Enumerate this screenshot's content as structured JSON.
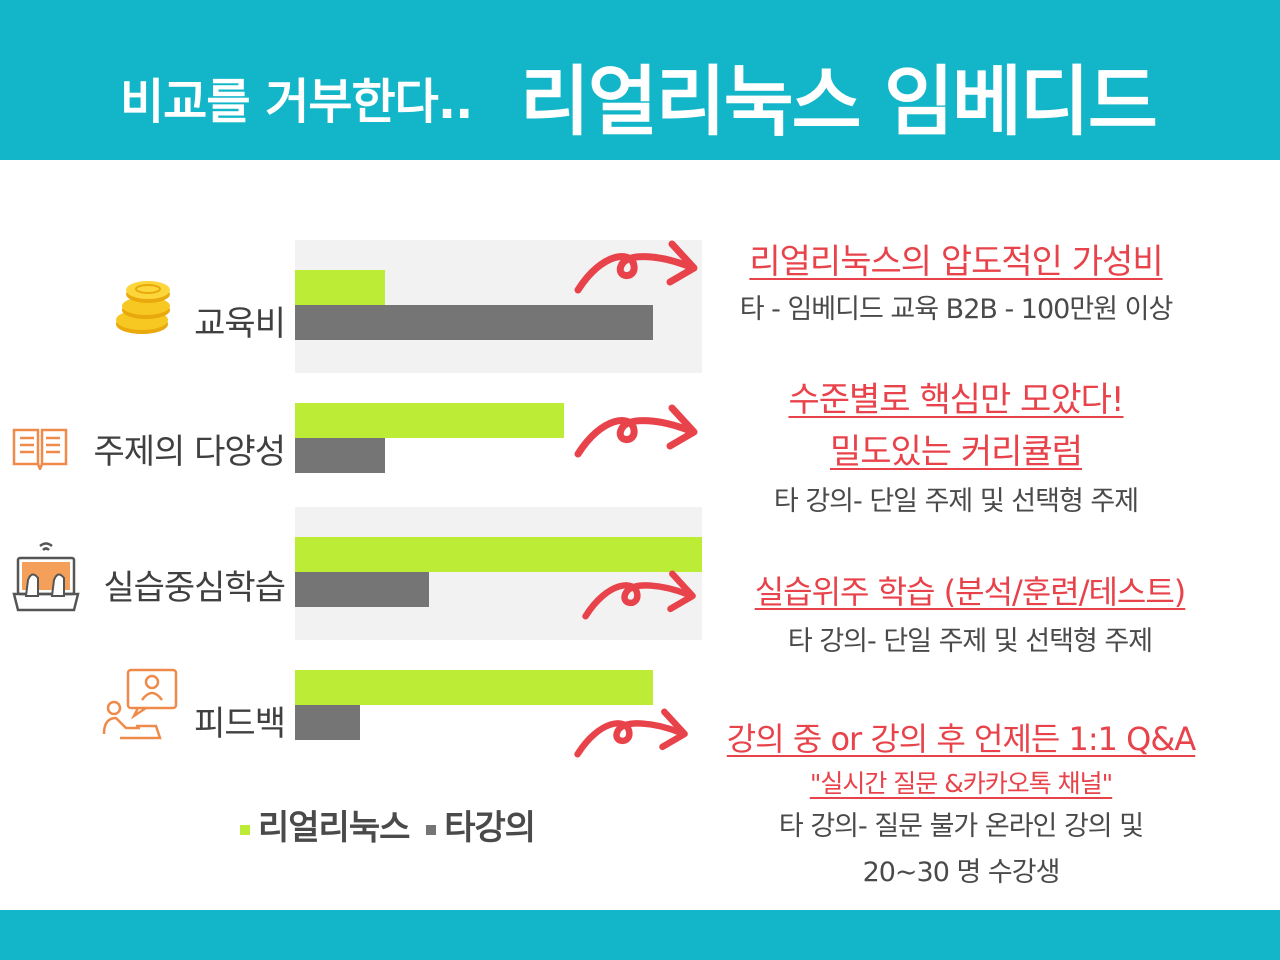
{
  "header": {
    "title_small": "비교를 거부한다..",
    "title_big": "리얼리눅스 임베디드",
    "bg_color": "#13b6c9"
  },
  "chart_data": {
    "type": "bar",
    "orientation": "horizontal",
    "categories": [
      "교육비",
      "주제의 다양성",
      "실습중심학습",
      "피드백"
    ],
    "series": [
      {
        "name": "리얼리눅스",
        "color": "#bdec37",
        "values": [
          0.22,
          0.66,
          1.0,
          0.88
        ]
      },
      {
        "name": "타강의",
        "color": "#757575",
        "values": [
          0.88,
          0.22,
          0.33,
          0.16
        ]
      }
    ],
    "xlim": [
      0,
      1
    ],
    "legend": "bottom",
    "grid": false
  },
  "icons": {
    "cat0": "coins-icon",
    "cat1": "open-book-icon",
    "cat2": "laptop-typing-icon",
    "cat3": "chat-person-icon"
  },
  "callouts": [
    {
      "lines": [
        {
          "text": "리얼리눅스의 압도적인 가성비",
          "style": "red"
        },
        {
          "text": "타 - 임베디드 교육 B2B - 100만원 이상",
          "style": "gray"
        }
      ]
    },
    {
      "lines": [
        {
          "text": "수준별로 핵심만 모았다!",
          "style": "red"
        },
        {
          "text": "밀도있는 커리큘럼",
          "style": "red"
        },
        {
          "text": "타 강의- 단일 주제 및 선택형 주제",
          "style": "gray"
        }
      ]
    },
    {
      "lines": [
        {
          "text": "실습위주 학습 (분석/훈련/테스트)",
          "style": "red"
        },
        {
          "text": "타 강의- 단일 주제 및 선택형 주제",
          "style": "gray"
        }
      ]
    },
    {
      "lines": [
        {
          "text": "강의 중 or 강의 후 언제든 1:1 Q&A",
          "style": "red"
        },
        {
          "text": "\"실시간 질문 &카카오톡 채널\"",
          "style": "red"
        },
        {
          "text": "타 강의- 질문 불가 온라인 강의 및",
          "style": "gray"
        },
        {
          "text": "20~30 명 수강생",
          "style": "gray"
        }
      ]
    }
  ],
  "colors": {
    "accent_red": "#e8424a",
    "text_gray": "#4a4a4a"
  }
}
